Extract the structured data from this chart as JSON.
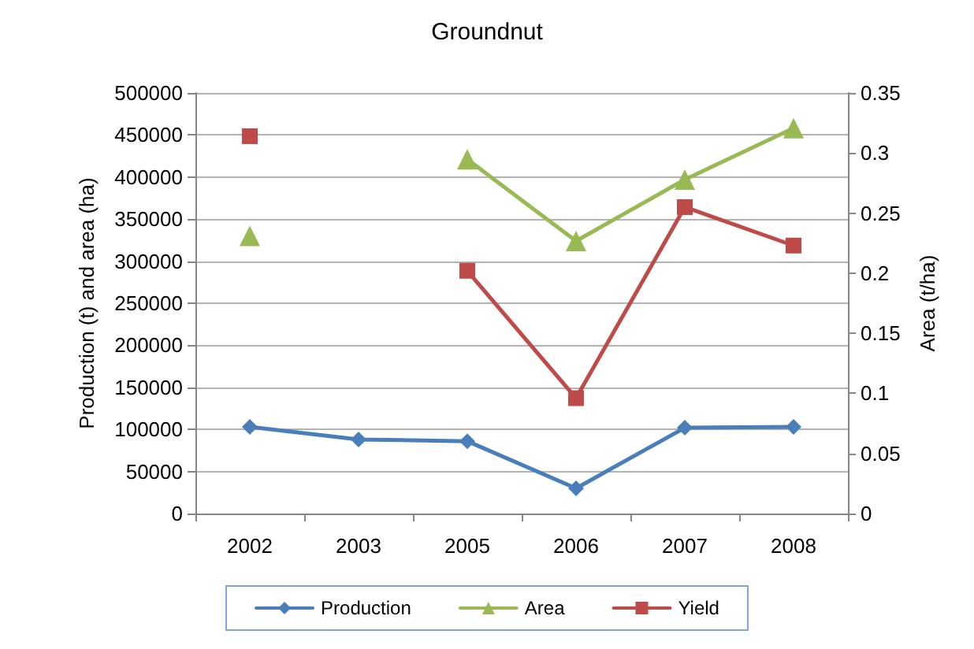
{
  "chart_data": {
    "type": "line",
    "title": "Groundnut",
    "ylabel": "Production (t) and area (ha)",
    "y2label": "Area (t/ha)",
    "categories": [
      "2002",
      "2003",
      "2005",
      "2006",
      "2007",
      "2008"
    ],
    "series": [
      {
        "name": "Production",
        "color": "#4a7ebb",
        "marker": "diamond",
        "values": [
          103000,
          88000,
          86000,
          30000,
          102000,
          103000
        ]
      },
      {
        "name": "Area",
        "color": "#98b954",
        "marker": "triangle",
        "values": [
          330000,
          null,
          421000,
          324000,
          397000,
          458000
        ]
      },
      {
        "name": "Yield",
        "color": "#be4b48",
        "marker": "square",
        "axis": "y2",
        "values": [
          0.314,
          null,
          0.202,
          0.096,
          0.255,
          0.223
        ]
      }
    ],
    "ylim": [
      0,
      500000
    ],
    "yticks": [
      0,
      50000,
      100000,
      150000,
      200000,
      250000,
      300000,
      350000,
      400000,
      450000,
      500000
    ],
    "y2lim": [
      0,
      0.35
    ],
    "y2ticks": [
      0,
      0.05,
      0.1,
      0.15,
      0.2,
      0.25,
      0.3,
      0.35
    ],
    "grid": "y",
    "legend": "bottom",
    "line_style": "solid"
  }
}
